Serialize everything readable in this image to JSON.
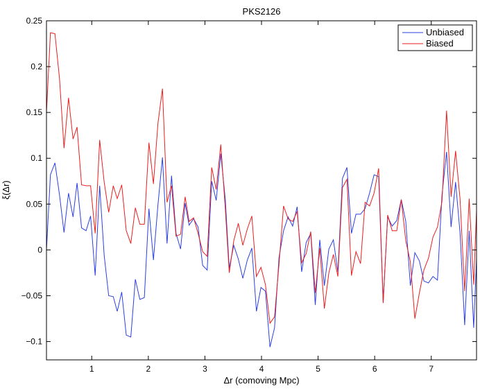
{
  "chart_data": {
    "type": "line",
    "title": "PKS2126",
    "xlabel": "Δr (comoving Mpc)",
    "ylabel": "ξ(Δr)",
    "xlim": [
      0.2,
      7.8
    ],
    "ylim": [
      -0.12,
      0.25
    ],
    "xticks": [
      1,
      2,
      3,
      4,
      5,
      6,
      7
    ],
    "xtick_labels": [
      "1",
      "2",
      "3",
      "4",
      "5",
      "6",
      "7"
    ],
    "yticks": [
      -0.1,
      -0.05,
      0,
      0.05,
      0.1,
      0.15,
      0.2,
      0.25
    ],
    "ytick_labels": [
      "−0.1",
      "−0.05",
      "0",
      "0.05",
      "0.1",
      "0.15",
      "0.2",
      "0.25"
    ],
    "grid": false,
    "legend_position": "top-right",
    "series": [
      {
        "name": "Unbiased",
        "color": "#2b3fe0",
        "x": [
          0.2,
          0.27,
          0.35,
          0.43,
          0.51,
          0.59,
          0.67,
          0.74,
          0.82,
          0.9,
          0.98,
          1.06,
          1.14,
          1.22,
          1.3,
          1.38,
          1.45,
          1.53,
          1.61,
          1.69,
          1.77,
          1.85,
          1.93,
          2.01,
          2.09,
          2.17,
          2.25,
          2.33,
          2.41,
          2.49,
          2.57,
          2.65,
          2.72,
          2.8,
          2.88,
          2.96,
          3.04,
          3.12,
          3.2,
          3.28,
          3.36,
          3.43,
          3.51,
          3.59,
          3.67,
          3.75,
          3.83,
          3.91,
          3.99,
          4.07,
          4.15,
          4.23,
          4.31,
          4.39,
          4.47,
          4.55,
          4.63,
          4.71,
          4.79,
          4.87,
          4.95,
          5.03,
          5.11,
          5.19,
          5.27,
          5.35,
          5.43,
          5.51,
          5.59,
          5.67,
          5.75,
          5.83,
          5.91,
          5.99,
          6.07,
          6.15,
          6.23,
          6.31,
          6.39,
          6.47,
          6.55,
          6.63,
          6.71,
          6.79,
          6.87,
          6.95,
          7.03,
          7.11,
          7.19,
          7.27,
          7.35,
          7.43,
          7.51,
          7.59,
          7.67,
          7.75,
          7.8
        ],
        "y": [
          0.0,
          0.082,
          0.095,
          0.06,
          0.019,
          0.062,
          0.036,
          0.073,
          0.024,
          0.021,
          0.037,
          -0.028,
          0.07,
          -0.006,
          -0.05,
          -0.051,
          -0.067,
          -0.046,
          -0.093,
          -0.095,
          -0.032,
          -0.054,
          -0.052,
          0.045,
          -0.011,
          0.049,
          0.101,
          0.007,
          0.081,
          0.018,
          0.001,
          0.051,
          0.027,
          0.034,
          0.025,
          -0.017,
          -0.022,
          0.075,
          0.054,
          0.105,
          0.055,
          -0.02,
          0.005,
          -0.01,
          -0.031,
          -0.011,
          0.002,
          -0.067,
          -0.041,
          -0.045,
          -0.106,
          -0.085,
          -0.008,
          0.021,
          0.036,
          0.026,
          0.047,
          -0.024,
          0.008,
          0.018,
          -0.06,
          0.011,
          -0.039,
          0.001,
          0.011,
          -0.024,
          0.078,
          0.09,
          0.018,
          0.039,
          0.039,
          0.045,
          0.062,
          0.082,
          0.08,
          -0.057,
          0.036,
          0.026,
          0.032,
          0.055,
          0.031,
          -0.039,
          -0.003,
          -0.012,
          -0.034,
          -0.036,
          -0.029,
          -0.033,
          0.06,
          0.107,
          0.025,
          0.074,
          0.018,
          -0.082,
          0.021,
          -0.085,
          -0.01
        ]
      },
      {
        "name": "Biased",
        "color": "#e81e1e",
        "x": [
          0.2,
          0.27,
          0.35,
          0.43,
          0.51,
          0.59,
          0.67,
          0.74,
          0.82,
          0.9,
          0.98,
          1.06,
          1.14,
          1.22,
          1.3,
          1.38,
          1.45,
          1.53,
          1.61,
          1.69,
          1.77,
          1.85,
          1.93,
          2.01,
          2.09,
          2.17,
          2.25,
          2.33,
          2.41,
          2.49,
          2.57,
          2.65,
          2.72,
          2.8,
          2.88,
          2.96,
          3.04,
          3.12,
          3.2,
          3.28,
          3.36,
          3.43,
          3.51,
          3.59,
          3.67,
          3.75,
          3.83,
          3.91,
          3.99,
          4.07,
          4.15,
          4.23,
          4.31,
          4.39,
          4.47,
          4.55,
          4.63,
          4.71,
          4.79,
          4.87,
          4.95,
          5.03,
          5.11,
          5.19,
          5.27,
          5.35,
          5.43,
          5.51,
          5.59,
          5.67,
          5.75,
          5.83,
          5.91,
          5.99,
          6.07,
          6.15,
          6.23,
          6.31,
          6.39,
          6.47,
          6.55,
          6.63,
          6.71,
          6.79,
          6.87,
          6.95,
          7.03,
          7.11,
          7.19,
          7.27,
          7.35,
          7.43,
          7.51,
          7.59,
          7.67,
          7.75,
          7.8
        ],
        "y": [
          0.15,
          0.237,
          0.236,
          0.187,
          0.111,
          0.166,
          0.121,
          0.134,
          0.071,
          0.07,
          0.07,
          0.018,
          0.12,
          0.074,
          0.041,
          0.07,
          0.056,
          0.071,
          0.021,
          0.007,
          0.046,
          0.028,
          0.028,
          0.117,
          0.072,
          0.138,
          0.176,
          0.052,
          0.07,
          0.015,
          0.017,
          0.058,
          0.031,
          0.035,
          0.018,
          -0.002,
          -0.007,
          0.09,
          0.066,
          0.115,
          0.045,
          -0.025,
          0.01,
          0.029,
          0.005,
          0.023,
          0.037,
          -0.029,
          -0.019,
          -0.038,
          -0.08,
          -0.073,
          -0.015,
          0.048,
          0.034,
          0.031,
          0.042,
          -0.014,
          -0.004,
          0.02,
          -0.047,
          0.002,
          -0.064,
          -0.025,
          -0.005,
          -0.029,
          0.068,
          0.077,
          -0.028,
          -0.002,
          -0.015,
          0.052,
          0.048,
          0.062,
          0.089,
          -0.058,
          0.038,
          0.021,
          0.021,
          0.055,
          0.01,
          -0.013,
          -0.075,
          -0.047,
          -0.022,
          -0.009,
          0.014,
          0.025,
          0.053,
          0.152,
          0.058,
          0.108,
          0.055,
          -0.045,
          0.056,
          -0.038,
          0.043
        ]
      }
    ]
  }
}
